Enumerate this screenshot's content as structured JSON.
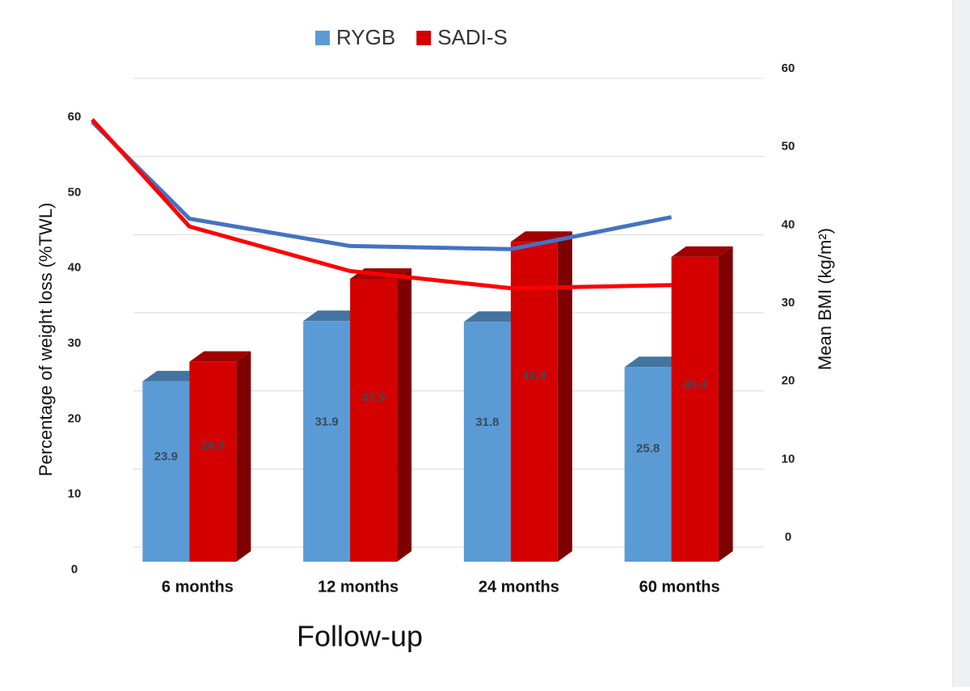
{
  "chart_data": {
    "type": "bar",
    "x_label": "Follow-up",
    "y_label": "Percentage of weight loss (%TWL)",
    "y2_label": "Mean BMI (kg/m²)",
    "categories": [
      null,
      "6 months",
      "12 months",
      "24 months",
      "60 months"
    ],
    "series": [
      {
        "name": "RYGB",
        "color": "#5b9bd5",
        "values": [
          null,
          23.9,
          31.9,
          31.8,
          25.8
        ]
      },
      {
        "name": "SADI-S",
        "color": "#d40000",
        "values": [
          null,
          26.5,
          37.5,
          42.4,
          40.4
        ]
      },
      {
        "name": "RYGB",
        "type": "line",
        "axis": "y2",
        "color": "#4472c4",
        "values": [
          53.2,
          40.8,
          37.3,
          36.9,
          41.0
        ]
      },
      {
        "name": "SADI-S",
        "type": "line",
        "axis": "y2",
        "color": "#ff0000",
        "values": [
          53.5,
          39.8,
          34.1,
          31.9,
          32.3
        ]
      }
    ],
    "ylim": [
      0,
      60
    ],
    "yticks": [
      0,
      10,
      20,
      30,
      40,
      50,
      60
    ],
    "y2lim": [
      0,
      60
    ],
    "y2ticks": [
      0,
      10,
      20,
      30,
      40,
      50,
      60
    ],
    "grid": true,
    "legend": "top"
  }
}
